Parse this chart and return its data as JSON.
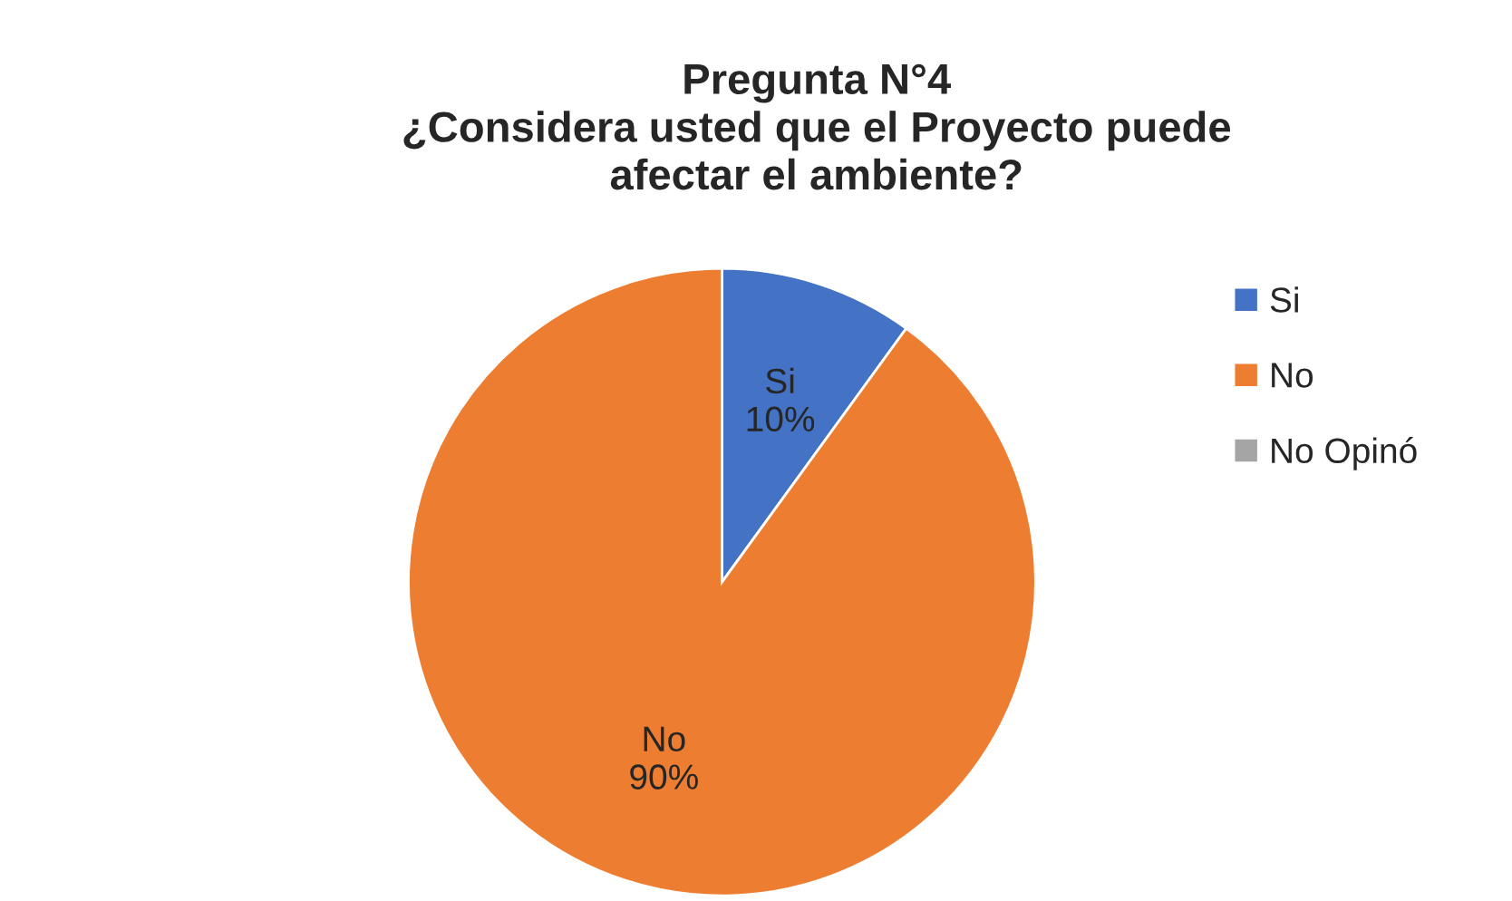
{
  "chart_data": {
    "type": "pie",
    "title": "Pregunta N°4\n¿Considera usted que el Proyecto puede\nafectar el ambiente?",
    "categories": [
      "Si",
      "No",
      "No Opinó"
    ],
    "values": [
      10,
      90,
      0
    ],
    "colors": [
      "#4472c4",
      "#ed7d31",
      "#a5a5a5"
    ],
    "value_labels": [
      "Si\n10%",
      "No\n90%",
      null
    ],
    "legend": "right"
  }
}
